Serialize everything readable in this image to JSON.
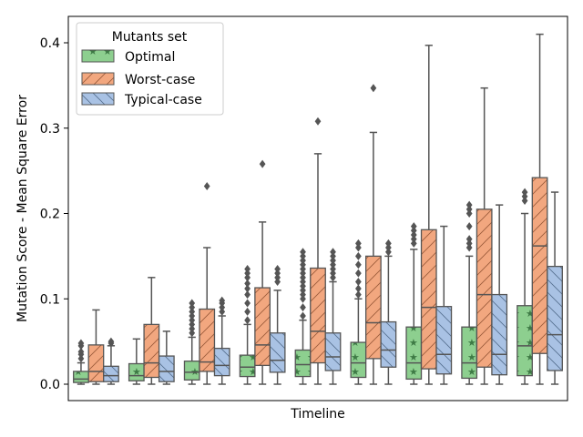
{
  "chart_data": {
    "type": "boxplot",
    "title": "",
    "xlabel": "Timeline",
    "ylabel": "Mutation Score - Mean Square Error",
    "ylim": [
      -0.02,
      0.43
    ],
    "yticks": [
      0.0,
      0.1,
      0.2,
      0.3,
      0.4
    ],
    "ytick_labels": [
      "0.0",
      "0.1",
      "0.2",
      "0.3",
      "0.4"
    ],
    "grid": false,
    "legend": {
      "title": "Mutants set",
      "placement": "top-left",
      "entries": [
        "Optimal",
        "Worst-case",
        "Typical-case"
      ]
    },
    "series_colors": {
      "Optimal": {
        "fill": "#8dcf8f",
        "hatch": "star"
      },
      "Worst-case": {
        "fill": "#f2a77f",
        "hatch": "slash"
      },
      "Typical-case": {
        "fill": "#a9c2e4",
        "hatch": "backslash"
      }
    },
    "groups": 9,
    "series": [
      {
        "name": "Optimal",
        "boxes": [
          {
            "whislo": 0.0,
            "q1": 0.002,
            "med": 0.006,
            "q3": 0.015,
            "whishi": 0.025,
            "fliers": [
              0.03,
              0.035,
              0.038,
              0.045,
              0.048
            ]
          },
          {
            "whislo": 0.0,
            "q1": 0.004,
            "med": 0.01,
            "q3": 0.024,
            "whishi": 0.053,
            "fliers": []
          },
          {
            "whislo": 0.0,
            "q1": 0.005,
            "med": 0.014,
            "q3": 0.027,
            "whishi": 0.055,
            "fliers": [
              0.06,
              0.065,
              0.07,
              0.075,
              0.08,
              0.085,
              0.09,
              0.095
            ]
          },
          {
            "whislo": 0.0,
            "q1": 0.009,
            "med": 0.02,
            "q3": 0.034,
            "whishi": 0.07,
            "fliers": [
              0.075,
              0.085,
              0.095,
              0.105,
              0.112,
              0.118,
              0.125,
              0.13,
              0.135
            ]
          },
          {
            "whislo": 0.0,
            "q1": 0.009,
            "med": 0.023,
            "q3": 0.04,
            "whishi": 0.075,
            "fliers": [
              0.08,
              0.09,
              0.1,
              0.105,
              0.11,
              0.115,
              0.12,
              0.125,
              0.13,
              0.135,
              0.14,
              0.145,
              0.15,
              0.155
            ]
          },
          {
            "whislo": 0.0,
            "q1": 0.008,
            "med": 0.025,
            "q3": 0.049,
            "whishi": 0.1,
            "fliers": [
              0.105,
              0.112,
              0.12,
              0.13,
              0.14,
              0.15,
              0.16,
              0.165
            ]
          },
          {
            "whislo": 0.0,
            "q1": 0.006,
            "med": 0.025,
            "q3": 0.067,
            "whishi": 0.158,
            "fliers": [
              0.165,
              0.17,
              0.175,
              0.18,
              0.185
            ]
          },
          {
            "whislo": 0.0,
            "q1": 0.007,
            "med": 0.025,
            "q3": 0.067,
            "whishi": 0.15,
            "fliers": [
              0.16,
              0.165,
              0.17,
              0.185,
              0.2,
              0.205,
              0.21
            ]
          },
          {
            "whislo": 0.0,
            "q1": 0.01,
            "med": 0.045,
            "q3": 0.092,
            "whishi": 0.2,
            "fliers": [
              0.215,
              0.22,
              0.225
            ]
          }
        ]
      },
      {
        "name": "Worst-case",
        "boxes": [
          {
            "whislo": 0.0,
            "q1": 0.003,
            "med": 0.015,
            "q3": 0.046,
            "whishi": 0.087,
            "fliers": []
          },
          {
            "whislo": 0.0,
            "q1": 0.008,
            "med": 0.025,
            "q3": 0.07,
            "whishi": 0.125,
            "fliers": []
          },
          {
            "whislo": 0.0,
            "q1": 0.015,
            "med": 0.026,
            "q3": 0.088,
            "whishi": 0.16,
            "fliers": [
              0.232
            ]
          },
          {
            "whislo": 0.0,
            "q1": 0.022,
            "med": 0.046,
            "q3": 0.113,
            "whishi": 0.19,
            "fliers": [
              0.258
            ]
          },
          {
            "whislo": 0.0,
            "q1": 0.025,
            "med": 0.062,
            "q3": 0.136,
            "whishi": 0.27,
            "fliers": [
              0.308
            ]
          },
          {
            "whislo": 0.0,
            "q1": 0.03,
            "med": 0.072,
            "q3": 0.15,
            "whishi": 0.295,
            "fliers": [
              0.347
            ]
          },
          {
            "whislo": 0.0,
            "q1": 0.018,
            "med": 0.09,
            "q3": 0.181,
            "whishi": 0.397,
            "fliers": []
          },
          {
            "whislo": 0.0,
            "q1": 0.02,
            "med": 0.105,
            "q3": 0.205,
            "whishi": 0.347,
            "fliers": []
          },
          {
            "whislo": 0.0,
            "q1": 0.036,
            "med": 0.162,
            "q3": 0.242,
            "whishi": 0.41,
            "fliers": []
          }
        ]
      },
      {
        "name": "Typical-case",
        "boxes": [
          {
            "whislo": 0.0,
            "q1": 0.003,
            "med": 0.01,
            "q3": 0.021,
            "whishi": 0.045,
            "fliers": [
              0.048,
              0.05
            ]
          },
          {
            "whislo": 0.0,
            "q1": 0.003,
            "med": 0.015,
            "q3": 0.033,
            "whishi": 0.062,
            "fliers": []
          },
          {
            "whislo": 0.0,
            "q1": 0.01,
            "med": 0.022,
            "q3": 0.042,
            "whishi": 0.08,
            "fliers": [
              0.085,
              0.09,
              0.095,
              0.098
            ]
          },
          {
            "whislo": 0.0,
            "q1": 0.014,
            "med": 0.028,
            "q3": 0.06,
            "whishi": 0.11,
            "fliers": [
              0.12,
              0.125,
              0.13,
              0.135
            ]
          },
          {
            "whislo": 0.0,
            "q1": 0.016,
            "med": 0.032,
            "q3": 0.06,
            "whishi": 0.12,
            "fliers": [
              0.125,
              0.13,
              0.135,
              0.14,
              0.145,
              0.15,
              0.155
            ]
          },
          {
            "whislo": 0.0,
            "q1": 0.02,
            "med": 0.04,
            "q3": 0.073,
            "whishi": 0.15,
            "fliers": [
              0.155,
              0.16,
              0.165
            ]
          },
          {
            "whislo": 0.0,
            "q1": 0.012,
            "med": 0.035,
            "q3": 0.091,
            "whishi": 0.185,
            "fliers": []
          },
          {
            "whislo": 0.0,
            "q1": 0.011,
            "med": 0.035,
            "q3": 0.105,
            "whishi": 0.21,
            "fliers": []
          },
          {
            "whislo": 0.0,
            "q1": 0.016,
            "med": 0.058,
            "q3": 0.138,
            "whishi": 0.225,
            "fliers": []
          }
        ]
      }
    ]
  }
}
